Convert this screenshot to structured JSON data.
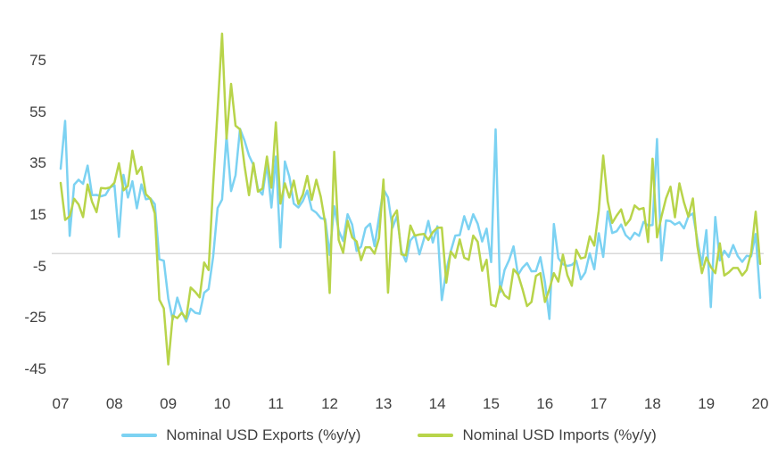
{
  "chart_data": {
    "type": "line",
    "title": "",
    "x_start_year": 2007,
    "points_per_year": 12,
    "x_tick_labels": [
      "07",
      "08",
      "09",
      "10",
      "11",
      "12",
      "13",
      "14",
      "15",
      "16",
      "17",
      "18",
      "19",
      "20"
    ],
    "y_ticks": [
      75,
      55,
      35,
      15,
      -5,
      -25,
      -45
    ],
    "y_axis_range": [
      -45,
      75
    ],
    "zero_line_value": 0,
    "grid": "zero-line-only",
    "legend_position": "bottom",
    "series": [
      {
        "name": "Nominal USD Exports (%y/y)",
        "color": "#7CD2F2",
        "values": [
          33,
          51.6,
          6.9,
          26.8,
          28.7,
          27.1,
          34.2,
          22.7,
          22.8,
          22.3,
          22.8,
          25.7,
          26.6,
          6.5,
          30.6,
          21.8,
          28.1,
          17.6,
          26.9,
          21.1,
          21.5,
          19.2,
          -2.2,
          -2.8,
          -17.5,
          -25.7,
          -17.1,
          -22.6,
          -26.4,
          -21.4,
          -23,
          -23.4,
          -15.2,
          -13.8,
          -1.2,
          17.7,
          21,
          45.7,
          24.3,
          30.5,
          48.5,
          43.9,
          38.1,
          34.4,
          25.1,
          22.9,
          34.9,
          17.9,
          37.7,
          2.4,
          35.8,
          29.9,
          19.4,
          17.9,
          20.4,
          24.5,
          17.1,
          15.9,
          13.8,
          13.4,
          -0.5,
          18.4,
          8.9,
          4.9,
          15.3,
          11.3,
          1,
          2.7,
          9.9,
          11.6,
          2.9,
          14.1,
          25,
          21.8,
          10,
          14.7,
          1,
          -3.1,
          5.1,
          7.2,
          -0.3,
          5.6,
          12.7,
          4.3,
          10.6,
          -18.1,
          -6.6,
          0.9,
          7,
          7.2,
          14.5,
          9.4,
          15.3,
          11.6,
          4.7,
          9.7,
          -3.3,
          48.3,
          -15,
          -6.4,
          -2.5,
          2.8,
          -8.3,
          -5.5,
          -3.7,
          -6.9,
          -6.8,
          -1.4,
          -11.2,
          -25.4,
          11.5,
          -1.8,
          -4.1,
          -4.8,
          -4.4,
          -2.8,
          -10,
          -7.3,
          0.1,
          -6.1,
          7.9,
          -1.3,
          16.4,
          8,
          8.7,
          11.3,
          7.2,
          5.5,
          8.1,
          6.9,
          12.3,
          10.9,
          11.1,
          44.5,
          -2.7,
          12.9,
          12.6,
          11.3,
          12.2,
          9.8,
          14.5,
          15.6,
          5.4,
          -4.4,
          9.1,
          -20.8,
          14.2,
          -2.7,
          1.1,
          -1.3,
          3.3,
          -1,
          -3.2,
          -0.9,
          -1.1,
          7.6,
          -17.2
        ]
      },
      {
        "name": "Nominal USD Imports (%y/y)",
        "color": "#B8D44A",
        "values": [
          27.5,
          13.1,
          14.5,
          21.3,
          19.1,
          14.2,
          26.9,
          20.1,
          16.1,
          25.5,
          25.3,
          25.7,
          27.6,
          35.1,
          24.6,
          26.3,
          40,
          31,
          33.7,
          23.1,
          21.3,
          15.6,
          -17.9,
          -21.3,
          -43.1,
          -24.1,
          -25.1,
          -23,
          -25.2,
          -13.2,
          -14.9,
          -17,
          -3.5,
          -6.4,
          26.7,
          55.9,
          85.5,
          44.7,
          66,
          49.7,
          48.3,
          34.1,
          22.7,
          35.2,
          24.1,
          25.3,
          37.7,
          25.6,
          51,
          19.4,
          27.3,
          21.8,
          28.4,
          19.3,
          22.9,
          30.2,
          20.9,
          28.7,
          22.1,
          11.8,
          -15.3,
          39.6,
          5.3,
          0.3,
          12.7,
          6.3,
          4.7,
          -2.6,
          2.4,
          2.4,
          0,
          6,
          28.8,
          -15.2,
          14.1,
          16.8,
          -0.3,
          -0.7,
          10.9,
          7,
          7.4,
          7.6,
          5.3,
          8.3,
          10,
          10.1,
          -11.3,
          0.8,
          -1.6,
          5.5,
          -1.6,
          -2.4,
          7,
          4.6,
          -6.7,
          -2.4,
          -19.9,
          -20.5,
          -12.7,
          -16.2,
          -17.6,
          -6.1,
          -8.1,
          -13.8,
          -20.4,
          -18.8,
          -8.7,
          -7.6,
          -18.8,
          -13.8,
          -7.6,
          -10.9,
          -0.4,
          -8.4,
          -12.5,
          1.5,
          -1.9,
          -1.4,
          6.7,
          3.1,
          16.7,
          38.1,
          20.3,
          11.9,
          14.8,
          17.2,
          11,
          13.3,
          18.7,
          17.2,
          17.7,
          4.5,
          36.9,
          6.3,
          14.4,
          21.5,
          26,
          14.1,
          27.3,
          19.9,
          14.3,
          21.4,
          3,
          -7.6,
          -1.5,
          -5.2,
          -7.6,
          4,
          -8.5,
          -7.3,
          -5.6,
          -5.6,
          -8.5,
          -6.4,
          0.3,
          16.3,
          -4
        ]
      }
    ]
  },
  "colors": {
    "background": "#ffffff",
    "zero_line": "#d9d9d9",
    "axis_text": "#404040"
  }
}
